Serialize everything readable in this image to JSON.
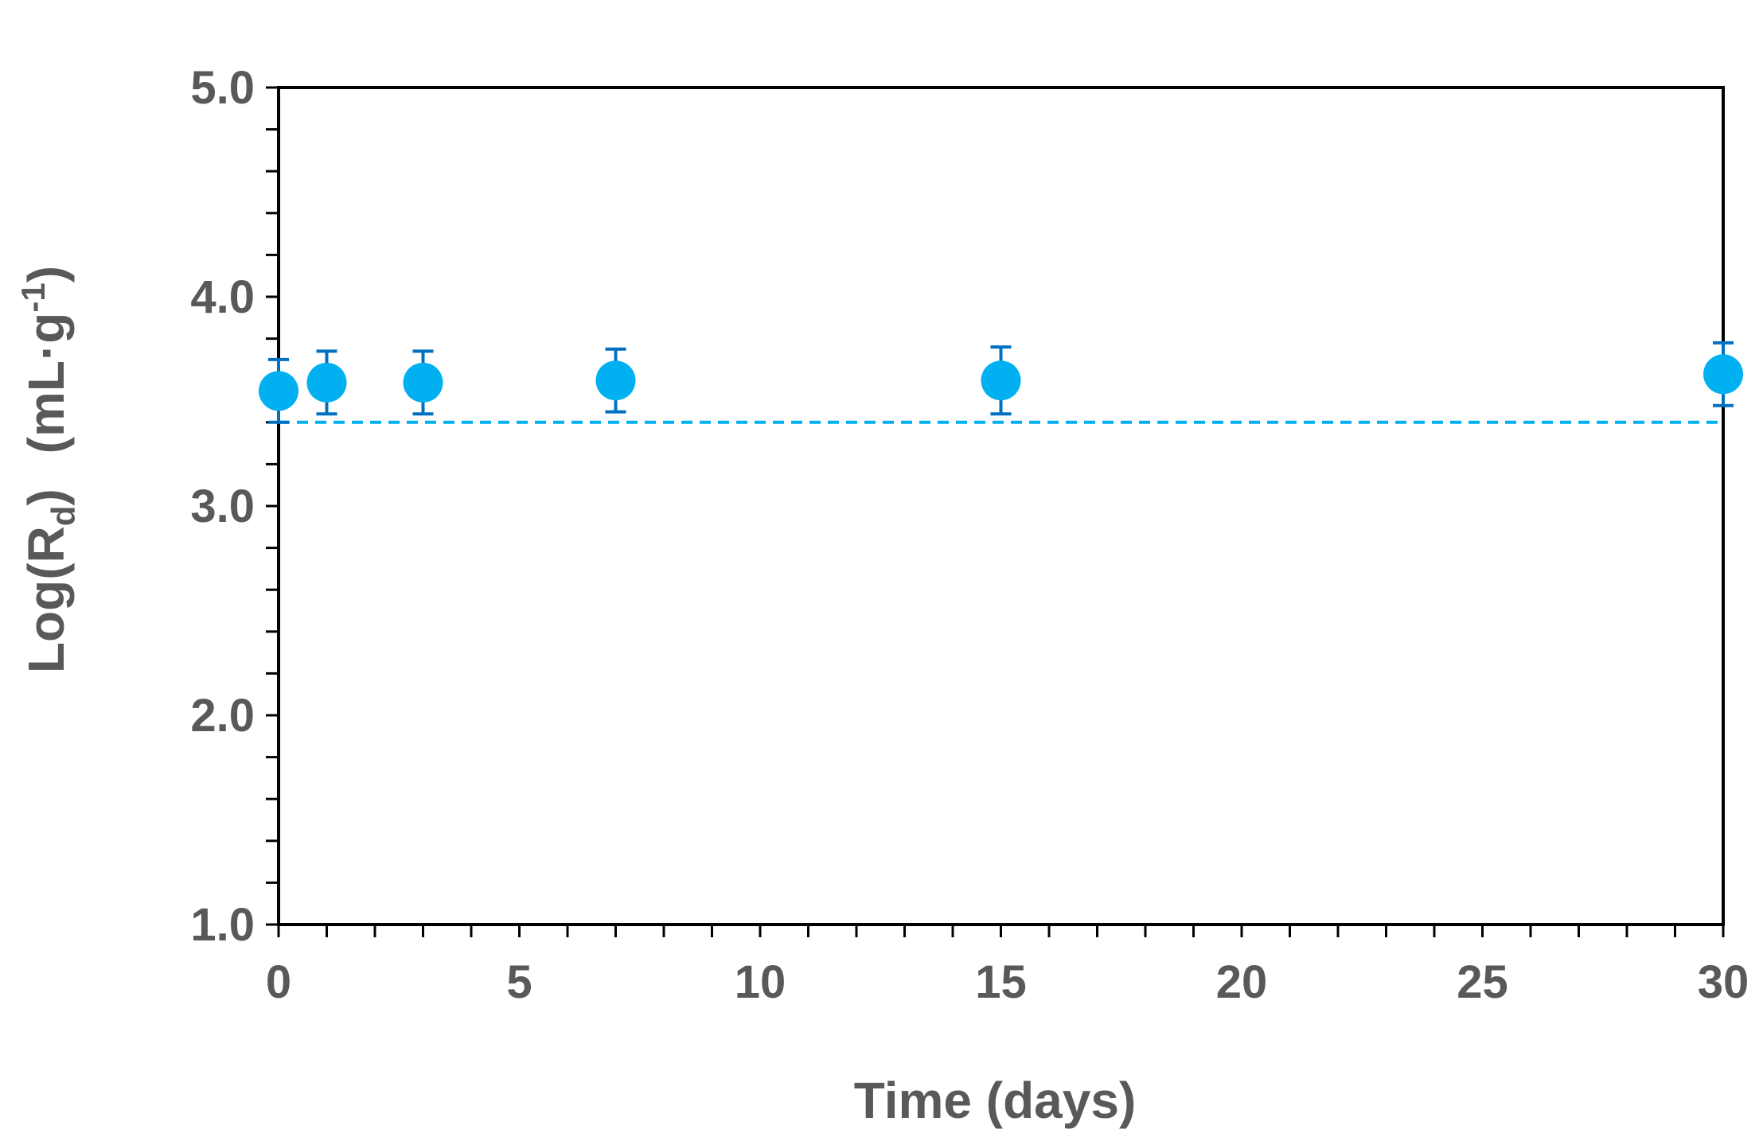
{
  "chart_data": {
    "type": "scatter",
    "title": "",
    "xlabel": "Time (days)",
    "ylabel": {
      "main": "Log(R",
      "sub": "d",
      "close": ")",
      "unit_open": "(mL·g",
      "unit_sup": "-1",
      "unit_close": ")"
    },
    "xlim": [
      0,
      30
    ],
    "ylim": [
      1.0,
      5.0
    ],
    "x_ticks": [
      "0",
      "5",
      "10",
      "15",
      "20",
      "25",
      "30"
    ],
    "y_ticks": [
      "1.0",
      "2.0",
      "3.0",
      "4.0",
      "5.0"
    ],
    "x_minor_step": 1,
    "y_minor_step": 0.2,
    "grid": false,
    "marker_color": "#00B0F0",
    "errorbar_color": "#0070C0",
    "reference_line_color": "#00B0F0",
    "series": [
      {
        "x": [
          0,
          1,
          3,
          7,
          15,
          30
        ],
        "y": [
          3.55,
          3.59,
          3.59,
          3.6,
          3.6,
          3.63
        ],
        "error": [
          0.15,
          0.15,
          0.15,
          0.15,
          0.16,
          0.15
        ]
      }
    ],
    "reference_line": {
      "y": 3.4,
      "style": "dashed"
    }
  }
}
